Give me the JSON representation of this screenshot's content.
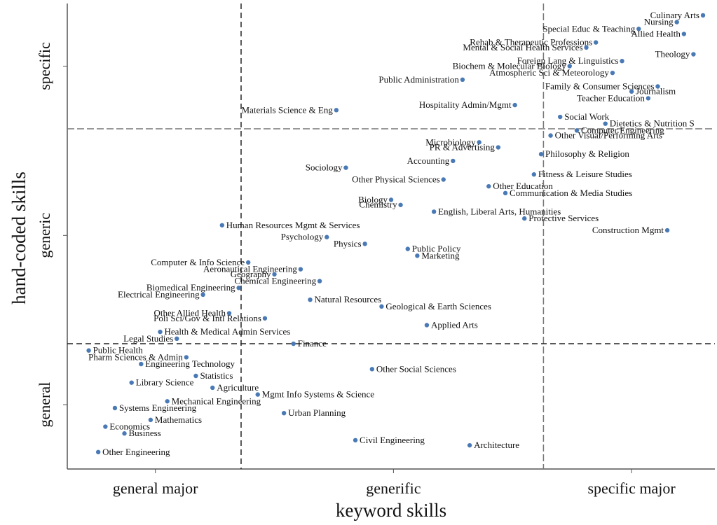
{
  "chart_data": {
    "type": "scatter",
    "xlabel": "keyword skills",
    "ylabel": "hand-coded skills",
    "xlim": [
      0.63,
      3.35
    ],
    "ylim": [
      0.62,
      3.37
    ],
    "xticks": [
      {
        "value": 1,
        "label": "general major"
      },
      {
        "value": 2,
        "label": "generific"
      },
      {
        "value": 3,
        "label": "specific major"
      }
    ],
    "yticks": [
      {
        "value": 1,
        "label": "general"
      },
      {
        "value": 2,
        "label": "generic"
      },
      {
        "value": 3,
        "label": "specific"
      }
    ],
    "xlines": [
      1.36,
      2.63
    ],
    "ylines": [
      1.36,
      2.63
    ],
    "color": "#4a7ab5",
    "series": [
      {
        "name": "majors",
        "point_labels": [
          "Culinary Arts",
          "Nursing",
          "Special Educ & Teaching",
          "Allied Health",
          "Rehab & Therapeutic Professions",
          "Mental & Social Health Services",
          "Theology",
          "Foreign Lang & Linguistics",
          "Biochem & Molecular Biology",
          "Atmospheric Sci & Meteorology",
          "Public Administration",
          "Family & Consumer Sciences",
          "Journalism",
          "Teacher Education",
          "Hospitality Admin/Mgmt",
          "Materials Science & Eng",
          "Social Work",
          "Dietetics & Nutrition S",
          "Computer Engineering",
          "Other Visual/Performing Arts",
          "Microbiology",
          "PR & Advertising",
          "Philosophy & Religion",
          "Accounting",
          "Sociology",
          "Fitness & Leisure Studies",
          "Other Physical Sciences",
          "Other Education",
          "Communication & Media Studies",
          "Biology",
          "Chemistry",
          "English, Liberal Arts, Humanities",
          "Protective Services",
          "Human Resources Mgmt & Services",
          "Construction Mgmt",
          "Psychology",
          "Physics",
          "Public Policy",
          "Marketing",
          "Computer & Info Science",
          "Aeronautical Engineering",
          "Geography",
          "Chemical Engineering",
          "Biomedical Engineering",
          "Electrical Engineering",
          "Natural Resources",
          "Geological & Earth Sciences",
          "Other Allied Health",
          "Poli Sci/Gov & Intl Relations",
          "Applied Arts",
          "Health & Medical Admin Services",
          "Legal Studies",
          "Finance",
          "Public Health",
          "Pharm Sciences & Admin",
          "Engineering Technology",
          "Other Social Sciences",
          "Statistics",
          "Library Science",
          "Agriculture",
          "Mgmt Info Systems & Science",
          "Mechanical Engineering",
          "Systems Engineering",
          "Urban Planning",
          "Economics",
          "Mathematics",
          "Business",
          "Civil Engineering",
          "Architecture",
          "Other Engineering"
        ],
        "x": [
          3.3,
          3.19,
          3.03,
          3.22,
          2.85,
          2.81,
          3.26,
          2.96,
          2.74,
          2.92,
          2.29,
          3.11,
          3.0,
          3.07,
          2.51,
          1.76,
          2.7,
          2.89,
          2.77,
          2.66,
          2.36,
          2.44,
          2.62,
          2.25,
          1.8,
          2.59,
          2.21,
          2.4,
          2.47,
          1.99,
          2.03,
          2.17,
          2.55,
          1.28,
          3.15,
          1.72,
          1.88,
          2.06,
          2.1,
          1.39,
          1.61,
          1.5,
          1.69,
          1.35,
          1.2,
          1.65,
          1.95,
          1.31,
          1.46,
          2.14,
          1.02,
          1.09,
          1.58,
          0.72,
          1.13,
          0.94,
          1.91,
          1.17,
          0.9,
          1.24,
          1.43,
          1.05,
          0.83,
          1.54,
          0.79,
          0.98,
          0.87,
          1.84,
          2.32,
          0.76
        ],
        "values": [
          3.3,
          3.26,
          3.22,
          3.19,
          3.14,
          3.11,
          3.07,
          3.03,
          3.0,
          2.96,
          2.92,
          2.88,
          2.85,
          2.81,
          2.77,
          2.74,
          2.7,
          2.66,
          2.62,
          2.59,
          2.55,
          2.52,
          2.48,
          2.44,
          2.4,
          2.36,
          2.33,
          2.29,
          2.25,
          2.21,
          2.18,
          2.14,
          2.1,
          2.06,
          2.03,
          1.99,
          1.95,
          1.92,
          1.88,
          1.84,
          1.8,
          1.77,
          1.73,
          1.69,
          1.65,
          1.62,
          1.58,
          1.54,
          1.51,
          1.47,
          1.43,
          1.39,
          1.36,
          1.32,
          1.28,
          1.24,
          1.21,
          1.17,
          1.13,
          1.1,
          1.06,
          1.02,
          0.98,
          0.95,
          0.87,
          0.91,
          0.83,
          0.79,
          0.76,
          0.72
        ]
      }
    ]
  }
}
